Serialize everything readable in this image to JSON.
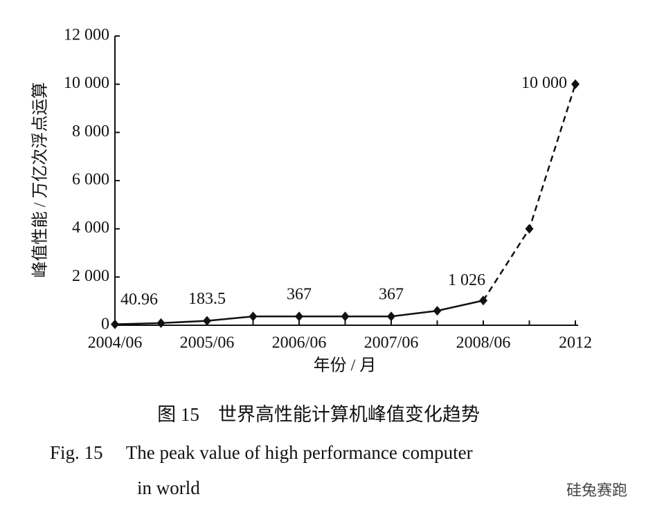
{
  "chart_data": {
    "type": "line",
    "categories": [
      "2004/06",
      null,
      "2005/06",
      null,
      "2006/06",
      null,
      "2007/06",
      null,
      "2008/06",
      null,
      "2012"
    ],
    "series": [
      {
        "color": "#111111",
        "values": [
          40.96,
          90,
          183.5,
          367,
          367,
          367,
          367,
          600,
          1026,
          4000,
          10000
        ],
        "value_labels": [
          "40.96",
          null,
          "183.5",
          null,
          "367",
          null,
          "367",
          null,
          "1 026",
          null,
          "10 000"
        ]
      }
    ],
    "dashed_from_index": 8,
    "ylim": [
      0,
      12000
    ],
    "yticks": [
      0,
      {
        "value": 2000,
        "label": "2 000"
      },
      {
        "value": 4000,
        "label": "4 000"
      },
      {
        "value": 6000,
        "label": "6 000"
      },
      {
        "value": 8000,
        "label": "8 000"
      },
      {
        "value": 10000,
        "label": "10 000"
      },
      {
        "value": 12000,
        "label": "12 000"
      }
    ],
    "ylabel": "峰值性能 / 万亿次浮点运算",
    "xlabel": "年份 / 月",
    "caption_cn": "图 15　世界高性能计算机峰值变化趋势",
    "caption_en": [
      "Fig. 15　 The peak value of high performance computer",
      "in world"
    ],
    "watermark": "硅兔赛跑"
  }
}
